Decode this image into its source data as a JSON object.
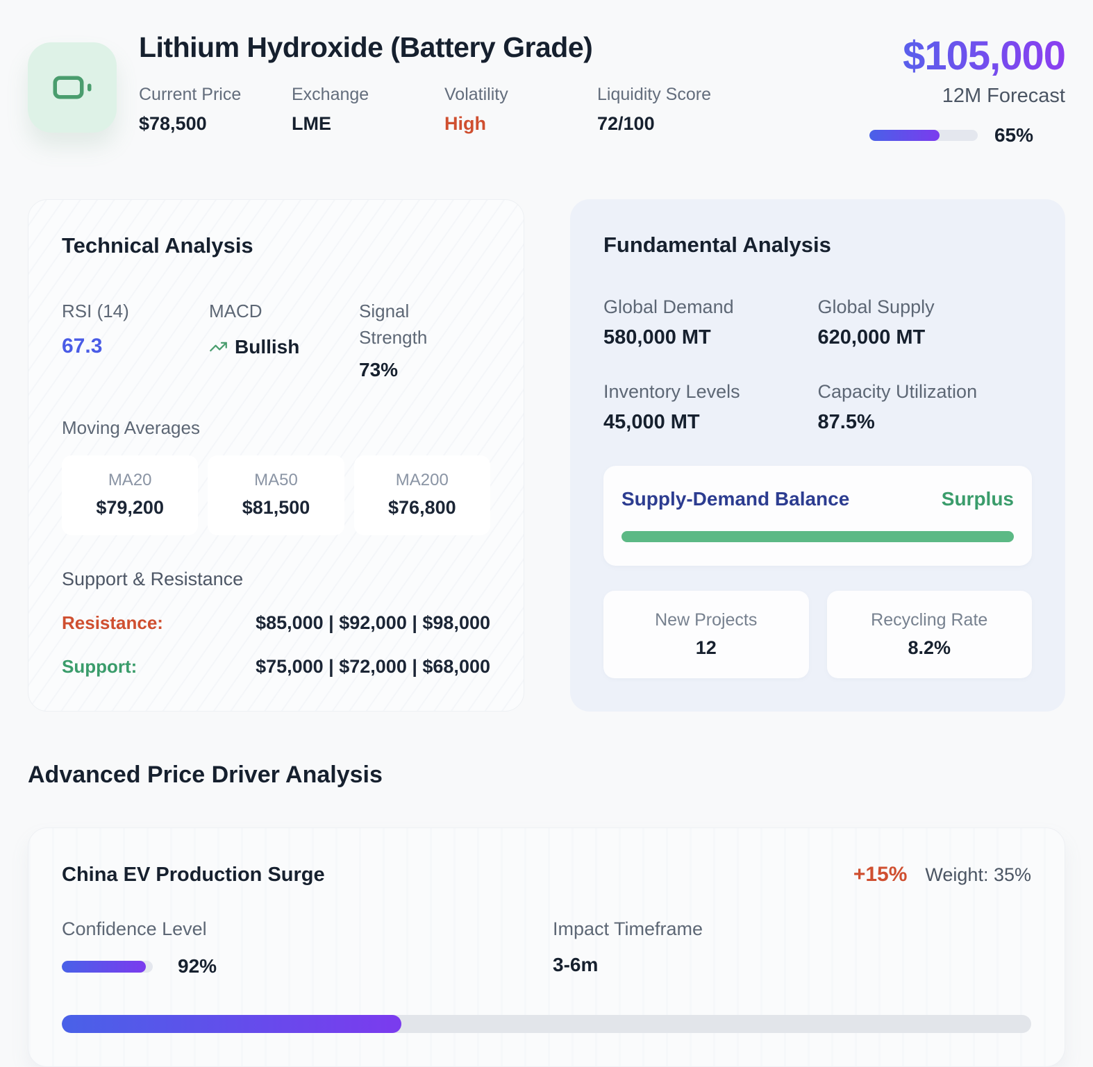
{
  "header": {
    "title": "Lithium Hydroxide (Battery Grade)",
    "stats": [
      {
        "label": "Current Price",
        "value": "$78,500"
      },
      {
        "label": "Exchange",
        "value": "LME"
      },
      {
        "label": "Volatility",
        "value": "High"
      },
      {
        "label": "Liquidity Score",
        "value": "72/100"
      }
    ],
    "forecast": {
      "price": "$105,000",
      "label": "12M Forecast",
      "progress_pct": 65,
      "progress_label": "65%"
    }
  },
  "technical": {
    "title": "Technical Analysis",
    "indicators": {
      "rsi": {
        "label": "RSI (14)",
        "value": "67.3"
      },
      "macd": {
        "label": "MACD",
        "value": "Bullish"
      },
      "signal": {
        "label": "Signal Strength",
        "value": "73%"
      }
    },
    "moving_averages": {
      "label": "Moving Averages",
      "items": [
        {
          "label": "MA20",
          "value": "$79,200"
        },
        {
          "label": "MA50",
          "value": "$81,500"
        },
        {
          "label": "MA200",
          "value": "$76,800"
        }
      ]
    },
    "support_resistance": {
      "title": "Support & Resistance",
      "resistance": {
        "label": "Resistance:",
        "values": "$85,000 | $92,000 | $98,000"
      },
      "support": {
        "label": "Support:",
        "values": "$75,000 | $72,000 | $68,000"
      }
    }
  },
  "fundamental": {
    "title": "Fundamental Analysis",
    "metrics": [
      {
        "label": "Global Demand",
        "value": "580,000 MT"
      },
      {
        "label": "Global Supply",
        "value": "620,000 MT"
      },
      {
        "label": "Inventory Levels",
        "value": "45,000 MT"
      },
      {
        "label": "Capacity Utilization",
        "value": "87.5%"
      }
    ],
    "balance": {
      "label": "Supply-Demand Balance",
      "status": "Surplus",
      "bar_pct": 100
    },
    "extras": [
      {
        "label": "New Projects",
        "value": "12"
      },
      {
        "label": "Recycling Rate",
        "value": "8.2%"
      }
    ]
  },
  "drivers": {
    "section_title": "Advanced Price Driver Analysis",
    "card": {
      "name": "China EV Production Surge",
      "impact": "+15%",
      "weight_label": "Weight: 35%",
      "weight_bar_pct": 35,
      "confidence": {
        "label": "Confidence Level",
        "pct": 92,
        "value": "92%"
      },
      "timeframe": {
        "label": "Impact Timeframe",
        "value": "3-6m"
      }
    }
  },
  "colors": {
    "accent_blue": "#4a5ce6",
    "accent_purple": "#7b3bee",
    "negative_red": "#cf4f30",
    "positive_green": "#3a9c6b",
    "bar_green": "#5cb985",
    "icon_green": "#4a9d6e"
  }
}
